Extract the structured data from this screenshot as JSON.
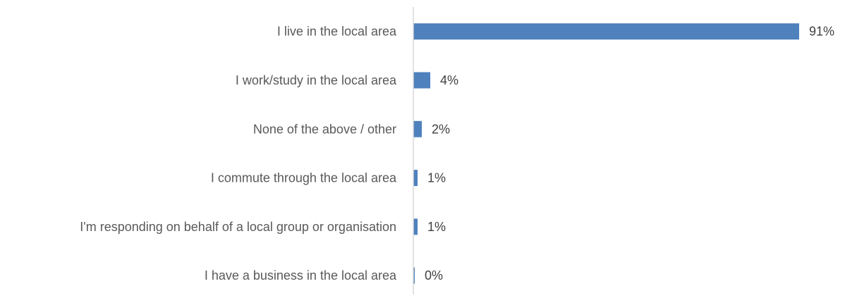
{
  "chart_data": {
    "type": "bar",
    "orientation": "horizontal",
    "title": "",
    "xlabel": "",
    "ylabel": "",
    "categories": [
      "I live in the local area",
      "I work/study in the local area",
      "None of the above / other",
      "I commute through the local area",
      "I'm responding on behalf of a local group or organisation",
      "I have a business in the local area"
    ],
    "values": [
      91,
      4,
      2,
      1,
      1,
      0
    ],
    "value_labels": [
      "91%",
      "4%",
      "2%",
      "1%",
      "1%",
      "0%"
    ],
    "xlim": [
      0,
      100
    ],
    "grid": false,
    "legend": "none",
    "bar_color": "#4f81bd",
    "axis_color": "#d9d9d9"
  }
}
